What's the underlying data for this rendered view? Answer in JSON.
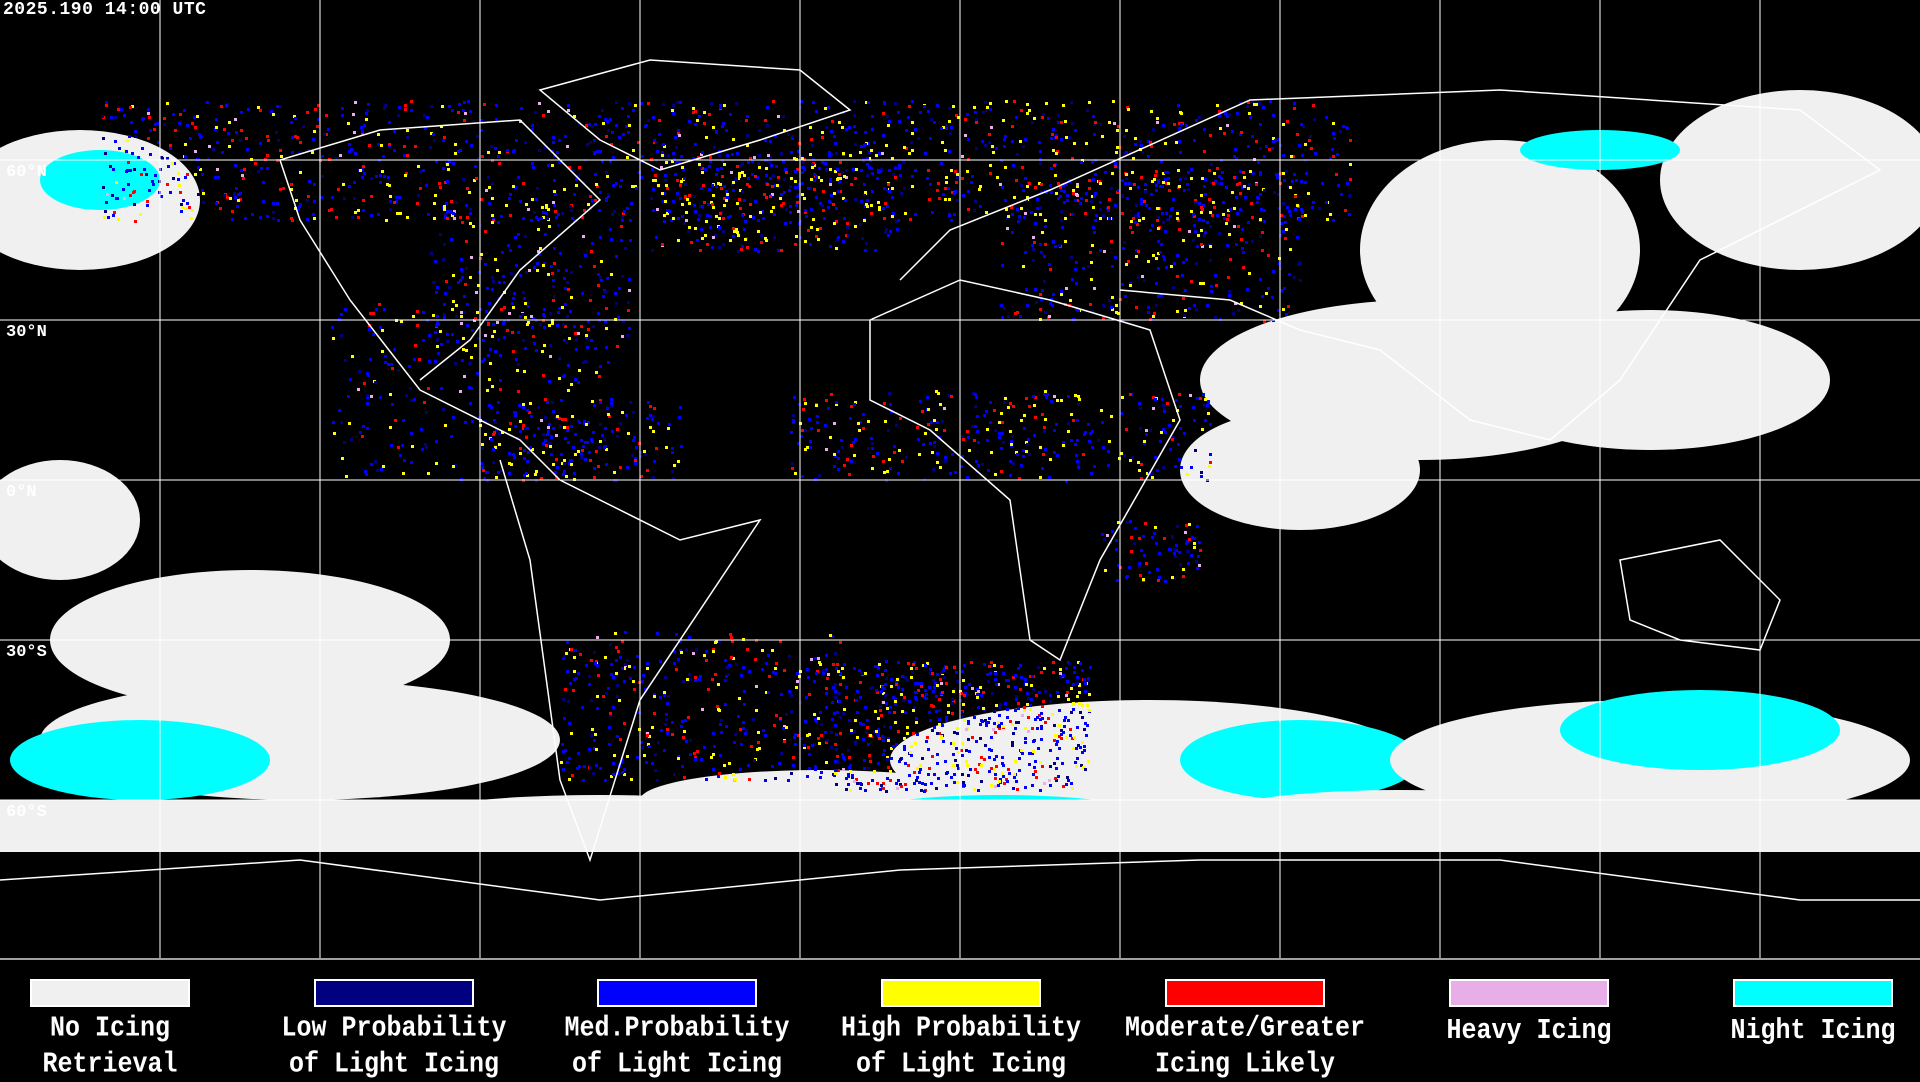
{
  "header": {
    "timestamp": "2025.190 14:00 UTC"
  },
  "map": {
    "projection": "equirectangular",
    "latitude_labels": [
      "60°N",
      "30°N",
      "0°N",
      "30°S",
      "60°S"
    ],
    "gridline_spacing_degrees": 30,
    "background_color": "#000000",
    "coastline_color": "#ffffff"
  },
  "legend": [
    {
      "line1": "No Icing",
      "line2": "Retrieval",
      "color": "#f0f0f0"
    },
    {
      "line1": "Low Probability",
      "line2": "of Light Icing",
      "color": "#000080"
    },
    {
      "line1": "Med.Probability",
      "line2": "of Light Icing",
      "color": "#0000ff"
    },
    {
      "line1": "High Probability",
      "line2": "of Light Icing",
      "color": "#ffff00"
    },
    {
      "line1": "Moderate/Greater",
      "line2": "Icing Likely",
      "color": "#ff0000"
    },
    {
      "line1": "Heavy Icing",
      "line2": "",
      "color": "#e8aee8"
    },
    {
      "line1": "Night Icing",
      "line2": "",
      "color": "#00ffff"
    }
  ]
}
